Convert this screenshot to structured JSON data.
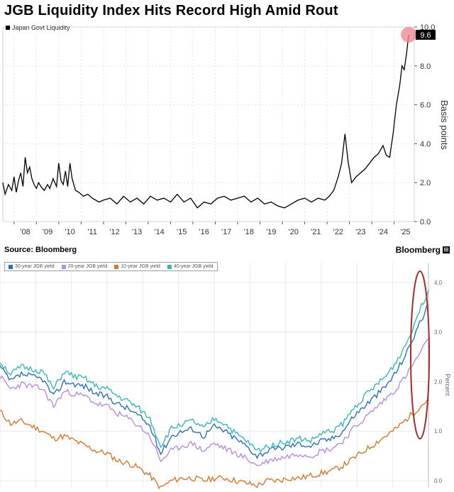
{
  "header": {
    "title": "JGB Liquidity Index Hits Record High Amid Rout",
    "source": "Source: Bloomberg",
    "brand": "Bloomberg",
    "brand_mark": "⊞"
  },
  "chart_data": [
    {
      "type": "line",
      "title": "JGB Liquidity Index Hits Record High Amid Rout",
      "legend": "Japan Govt Liquidity",
      "ylabel": "Basis points",
      "ylim": [
        0,
        10
      ],
      "xlim": [
        2007.5,
        2025.9
      ],
      "y_ticks": [
        0.0,
        2.0,
        4.0,
        6.0,
        8.0,
        10.0
      ],
      "y_tick_labels": [
        "0.0",
        "2.0",
        "4.0",
        "6.0",
        "8.0",
        "10.0"
      ],
      "x_tick_labels": [
        "'08",
        "'09",
        "'10",
        "'11",
        "'12",
        "'13",
        "'14",
        "'15",
        "'16",
        "'17",
        "'18",
        "'19",
        "'20",
        "'21",
        "'22",
        "'23",
        "'24",
        "'25"
      ],
      "last_value_label": "9.6",
      "color": "#000000",
      "highlight_color": "#f08a94",
      "series": [
        {
          "name": "Japan Govt Liquidity",
          "x": [
            2007.5,
            2007.6,
            2007.75,
            2007.9,
            2008.0,
            2008.1,
            2008.2,
            2008.3,
            2008.4,
            2008.5,
            2008.6,
            2008.7,
            2008.8,
            2008.9,
            2009.0,
            2009.1,
            2009.2,
            2009.35,
            2009.5,
            2009.6,
            2009.75,
            2009.9,
            2010.0,
            2010.1,
            2010.2,
            2010.3,
            2010.4,
            2010.5,
            2010.6,
            2010.75,
            2010.9,
            2011.1,
            2011.3,
            2011.5,
            2011.8,
            2012.0,
            2012.3,
            2012.6,
            2012.9,
            2013.2,
            2013.5,
            2013.8,
            2014.1,
            2014.4,
            2014.7,
            2015.0,
            2015.3,
            2015.6,
            2015.9,
            2016.2,
            2016.5,
            2016.8,
            2017.1,
            2017.4,
            2017.7,
            2018.0,
            2018.3,
            2018.6,
            2018.9,
            2019.2,
            2019.5,
            2019.8,
            2020.1,
            2020.4,
            2020.7,
            2021.0,
            2021.3,
            2021.6,
            2021.9,
            2022.1,
            2022.3,
            2022.5,
            2022.65,
            2022.8,
            2022.95,
            2023.1,
            2023.3,
            2023.5,
            2023.7,
            2023.9,
            2024.1,
            2024.3,
            2024.5,
            2024.65,
            2024.8,
            2024.95,
            2025.1,
            2025.25,
            2025.35,
            2025.45,
            2025.55,
            2025.65
          ],
          "values": [
            2.0,
            1.4,
            1.9,
            1.6,
            2.3,
            1.5,
            2.1,
            2.5,
            1.8,
            3.3,
            2.5,
            2.8,
            2.2,
            1.9,
            1.7,
            2.0,
            1.8,
            1.6,
            1.9,
            1.7,
            2.2,
            1.8,
            3.0,
            2.1,
            1.9,
            2.6,
            1.8,
            3.0,
            2.2,
            1.6,
            1.5,
            1.3,
            1.4,
            1.2,
            1.0,
            1.1,
            1.2,
            0.9,
            1.3,
            1.0,
            1.2,
            0.9,
            1.3,
            1.1,
            1.2,
            1.0,
            1.4,
            1.0,
            1.2,
            0.7,
            1.0,
            0.9,
            1.2,
            1.3,
            1.1,
            1.2,
            1.3,
            1.0,
            1.2,
            0.9,
            1.0,
            0.8,
            0.7,
            0.9,
            1.1,
            1.2,
            1.0,
            1.2,
            1.1,
            1.3,
            1.6,
            2.3,
            3.0,
            4.5,
            3.0,
            2.0,
            2.3,
            2.5,
            2.7,
            3.0,
            3.3,
            3.5,
            3.9,
            3.4,
            3.3,
            4.5,
            6.0,
            7.0,
            8.0,
            7.8,
            8.6,
            9.6
          ]
        }
      ]
    },
    {
      "type": "line",
      "ylabel": "Percent",
      "ylim": [
        0,
        4.4
      ],
      "y_ticks": [
        0.0,
        1.0,
        2.0,
        3.0,
        4.0
      ],
      "y_tick_labels": [
        "0.0",
        "1.0",
        "2.0",
        "3.0",
        "4.0"
      ],
      "legend_entries": [
        "30-year JGB yield",
        "20-year JGB yield",
        "10-year JGB yield",
        "40-year JGB yield"
      ],
      "colors": {
        "30y": "#2e6fb5",
        "20y": "#b48ee0",
        "10y": "#d4782c",
        "40y": "#36b8b8",
        "highlight": "#a52a2a"
      },
      "xlim": [
        0,
        200
      ],
      "series": [
        {
          "name": "30-year JGB yield",
          "x": [
            0,
            5,
            10,
            15,
            20,
            25,
            30,
            35,
            40,
            45,
            50,
            55,
            60,
            65,
            70,
            75,
            80,
            85,
            90,
            95,
            100,
            105,
            110,
            115,
            120,
            125,
            130,
            135,
            140,
            145,
            150,
            155,
            160,
            165,
            170,
            175,
            180,
            185,
            190,
            195,
            200
          ],
          "values": [
            2.3,
            2.0,
            2.15,
            2.1,
            2.05,
            1.7,
            2.0,
            1.95,
            1.9,
            1.75,
            1.7,
            1.55,
            1.45,
            1.3,
            1.1,
            0.55,
            0.9,
            1.0,
            1.05,
            0.9,
            1.1,
            1.0,
            0.85,
            0.7,
            0.5,
            0.6,
            0.65,
            0.7,
            0.75,
            0.7,
            0.8,
            0.85,
            1.0,
            1.3,
            1.5,
            1.7,
            1.9,
            2.2,
            2.6,
            3.1,
            3.55
          ]
        },
        {
          "name": "20-year JGB yield",
          "x": [
            0,
            5,
            10,
            15,
            20,
            25,
            30,
            35,
            40,
            45,
            50,
            55,
            60,
            65,
            70,
            75,
            80,
            85,
            90,
            95,
            100,
            105,
            110,
            115,
            120,
            125,
            130,
            135,
            140,
            145,
            150,
            155,
            160,
            165,
            170,
            175,
            180,
            185,
            190,
            195,
            200
          ],
          "values": [
            2.1,
            1.85,
            1.95,
            1.9,
            1.85,
            1.5,
            1.8,
            1.75,
            1.7,
            1.55,
            1.5,
            1.35,
            1.25,
            1.1,
            0.9,
            0.4,
            0.6,
            0.7,
            0.75,
            0.6,
            0.75,
            0.65,
            0.55,
            0.45,
            0.3,
            0.4,
            0.45,
            0.5,
            0.55,
            0.5,
            0.6,
            0.65,
            0.8,
            1.05,
            1.25,
            1.45,
            1.65,
            1.85,
            2.15,
            2.5,
            2.85
          ]
        },
        {
          "name": "10-year JGB yield",
          "x": [
            0,
            5,
            10,
            15,
            20,
            25,
            30,
            35,
            40,
            45,
            50,
            55,
            60,
            65,
            70,
            75,
            80,
            85,
            90,
            95,
            100,
            105,
            110,
            115,
            120,
            125,
            130,
            135,
            140,
            145,
            150,
            155,
            160,
            165,
            170,
            175,
            180,
            185,
            190,
            195,
            200
          ],
          "values": [
            1.4,
            1.15,
            1.2,
            1.1,
            1.0,
            0.85,
            0.9,
            0.8,
            0.7,
            0.6,
            0.55,
            0.4,
            0.35,
            0.25,
            0.1,
            -0.15,
            0.0,
            0.05,
            0.05,
            0.0,
            0.05,
            0.05,
            0.0,
            -0.05,
            -0.1,
            0.0,
            0.0,
            0.05,
            0.05,
            0.1,
            0.15,
            0.2,
            0.3,
            0.45,
            0.6,
            0.75,
            0.9,
            1.05,
            1.25,
            1.45,
            1.65
          ]
        },
        {
          "name": "40-year JGB yield",
          "x": [
            0,
            5,
            10,
            15,
            20,
            25,
            30,
            35,
            40,
            45,
            50,
            55,
            60,
            65,
            70,
            75,
            80,
            85,
            90,
            95,
            100,
            105,
            110,
            115,
            120,
            125,
            130,
            135,
            140,
            145,
            150,
            155,
            160,
            165,
            170,
            175,
            180,
            185,
            190,
            195,
            200
          ],
          "values": [
            2.4,
            2.15,
            2.3,
            2.25,
            2.2,
            1.85,
            2.2,
            2.1,
            2.05,
            1.9,
            1.85,
            1.7,
            1.6,
            1.45,
            1.25,
            0.7,
            1.05,
            1.15,
            1.2,
            1.05,
            1.25,
            1.15,
            0.95,
            0.8,
            0.6,
            0.7,
            0.75,
            0.8,
            0.85,
            0.8,
            0.95,
            1.0,
            1.15,
            1.45,
            1.7,
            1.9,
            2.1,
            2.4,
            2.8,
            3.35,
            3.85
          ]
        }
      ]
    }
  ]
}
